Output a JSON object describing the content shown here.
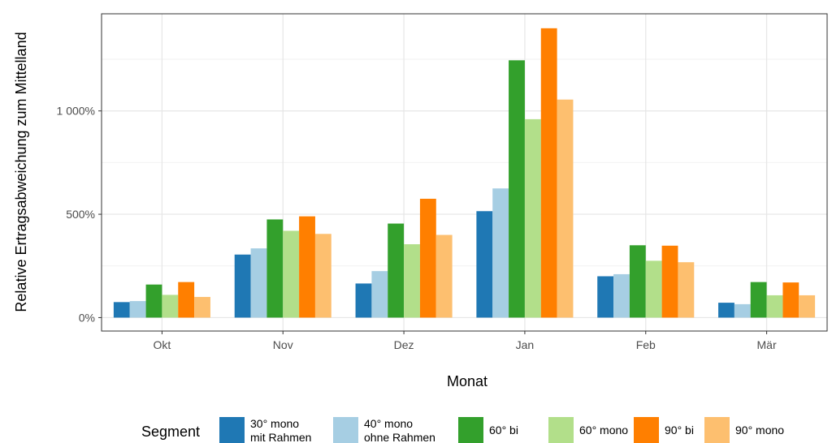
{
  "chart_data": {
    "type": "bar",
    "title": "",
    "xlabel": "Monat",
    "ylabel": "Relative Ertragsabweichung zum Mittelland",
    "categories": [
      "Okt",
      "Nov",
      "Dez",
      "Jan",
      "Feb",
      "Mär"
    ],
    "ylim": [
      -65,
      1470
    ],
    "yticks": [
      0,
      500,
      1000
    ],
    "ytick_labels": [
      "0%",
      "500%",
      "1 000%"
    ],
    "grid": true,
    "legend": {
      "title": "Segment",
      "position": "bottom"
    },
    "series": [
      {
        "name": "30° mono mit Rahmen",
        "legend_lines": [
          "30° mono",
          "mit Rahmen"
        ],
        "color": "#1f78b4",
        "values": [
          75,
          305,
          165,
          515,
          200,
          72
        ]
      },
      {
        "name": "40° mono ohne Rahmen",
        "legend_lines": [
          "40° mono",
          "ohne Rahmen"
        ],
        "color": "#a6cee3",
        "values": [
          80,
          335,
          225,
          625,
          210,
          65
        ]
      },
      {
        "name": "60° bi",
        "legend_lines": [
          "60° bi"
        ],
        "color": "#33a02c",
        "values": [
          160,
          475,
          455,
          1245,
          350,
          172
        ]
      },
      {
        "name": "60° mono",
        "legend_lines": [
          "60° mono"
        ],
        "color": "#b2df8a",
        "values": [
          110,
          420,
          355,
          960,
          275,
          108
        ]
      },
      {
        "name": "90° bi",
        "legend_lines": [
          "90° bi"
        ],
        "color": "#ff7f00",
        "values": [
          172,
          490,
          575,
          1400,
          348,
          170
        ]
      },
      {
        "name": "90° mono",
        "legend_lines": [
          "90° mono"
        ],
        "color": "#fdbf6f",
        "values": [
          100,
          405,
          400,
          1055,
          268,
          108
        ]
      }
    ]
  }
}
